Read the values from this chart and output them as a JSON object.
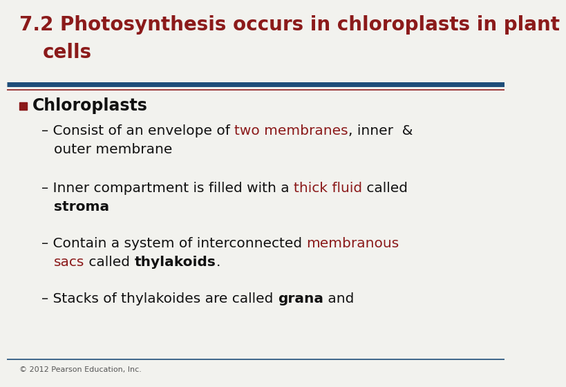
{
  "title_line1": "7.2 Photosynthesis occurs in chloroplasts in plant",
  "title_line2": "    cells",
  "title_color": "#8B1A1A",
  "title_fontsize": 20,
  "separator_color_blue": "#1F4E79",
  "separator_color_red": "#8B1A1A",
  "bg_color": "#F2F2EE",
  "bullet_header": "Chloroplasts",
  "bullet_header_color": "#111111",
  "bullet_square_color": "#8B1A1A",
  "footer": "© 2012 Pearson Education, Inc.",
  "footer_color": "#555555",
  "footer_fontsize": 8,
  "body_fontsize": 14.5,
  "header_fontsize": 17,
  "dark_color": "#111111",
  "red_color": "#8B1A1A"
}
